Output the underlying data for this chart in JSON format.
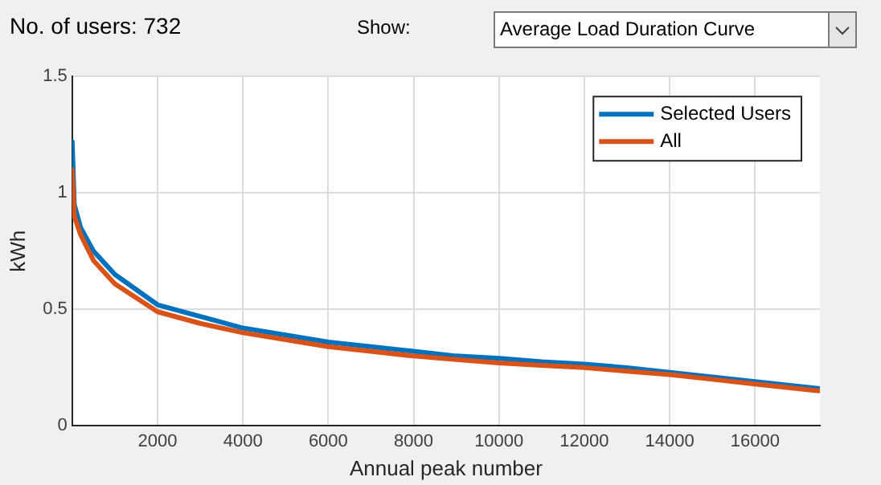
{
  "chart_data": {
    "type": "line",
    "xlabel": "Annual peak number",
    "ylabel": "kWh",
    "annotations": [
      "No. of users: 732",
      "Show:",
      "Average Load Duration Curve"
    ],
    "x": [
      0,
      50,
      200,
      500,
      1000,
      2000,
      3000,
      4000,
      5000,
      6000,
      7000,
      8000,
      9000,
      10000,
      11000,
      12000,
      13000,
      14000,
      15000,
      16000,
      17000,
      17520
    ],
    "series": [
      {
        "name": "Selected Users",
        "color": "#0072bd",
        "values": [
          1.22,
          0.95,
          0.85,
          0.75,
          0.65,
          0.52,
          0.47,
          0.42,
          0.39,
          0.36,
          0.34,
          0.32,
          0.3,
          0.29,
          0.275,
          0.265,
          0.25,
          0.23,
          0.21,
          0.19,
          0.17,
          0.16
        ]
      },
      {
        "name": "All",
        "color": "#d95319",
        "values": [
          1.1,
          0.9,
          0.82,
          0.71,
          0.61,
          0.49,
          0.44,
          0.4,
          0.37,
          0.34,
          0.32,
          0.3,
          0.285,
          0.27,
          0.26,
          0.25,
          0.235,
          0.22,
          0.2,
          0.18,
          0.16,
          0.15
        ]
      }
    ],
    "xlim": [
      0,
      17520
    ],
    "xticks": [
      2000,
      4000,
      6000,
      8000,
      10000,
      12000,
      14000,
      16000
    ],
    "ylim": [
      0,
      1.5
    ],
    "yticks": [
      0,
      0.5,
      1,
      1.5
    ],
    "grid": true,
    "legend": "top right",
    "marker": "none",
    "line_style": "solid"
  }
}
